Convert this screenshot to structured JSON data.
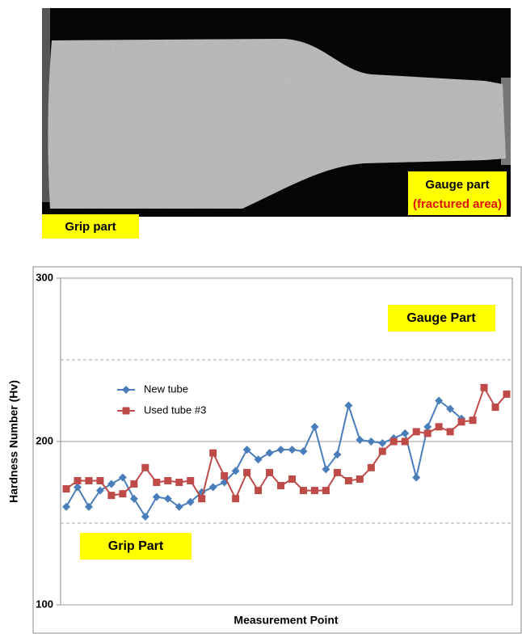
{
  "figure": {
    "grip_label": "Grip part",
    "gauge_label": "Gauge part",
    "gauge_note": "(fractured area)"
  },
  "chart_data": {
    "type": "line",
    "ylabel": "Hardness Number (Hv)",
    "xlabel": "Measurement Point",
    "annotations": [
      "Gauge Part",
      "Grip Part"
    ],
    "categories": [
      null,
      null,
      null,
      null,
      null,
      null,
      null,
      null,
      null,
      null,
      null,
      null,
      null,
      null,
      null,
      null,
      null,
      null,
      null,
      null,
      null,
      null,
      null,
      null,
      null,
      null,
      null,
      null,
      null,
      null,
      null,
      null,
      null,
      null,
      null,
      null,
      null,
      null,
      null,
      null
    ],
    "series": [
      {
        "name": "New tube",
        "color": "#4a7ebb",
        "marker": "diamond",
        "values": [
          160,
          172,
          160,
          170,
          174,
          178,
          165,
          154,
          166,
          165,
          160,
          163,
          169,
          172,
          175,
          182,
          195,
          189,
          193,
          195,
          195,
          194,
          209,
          183,
          192,
          222,
          201,
          200,
          199,
          202,
          205,
          178,
          209,
          225,
          220,
          214,
          null,
          null,
          null,
          null
        ]
      },
      {
        "name": "Used tube #3",
        "color": "#be4b48",
        "marker": "square",
        "values": [
          171,
          176,
          176,
          176,
          167,
          168,
          174,
          184,
          175,
          176,
          175,
          176,
          165,
          193,
          179,
          165,
          181,
          170,
          181,
          173,
          177,
          170,
          170,
          170,
          181,
          176,
          177,
          184,
          194,
          200,
          200,
          206,
          205,
          209,
          206,
          212,
          213,
          233,
          221,
          229
        ]
      }
    ],
    "ylim": [
      100,
      300
    ],
    "yticks": [
      100,
      200,
      300
    ],
    "yminor": [
      150,
      250
    ],
    "grid": true
  }
}
